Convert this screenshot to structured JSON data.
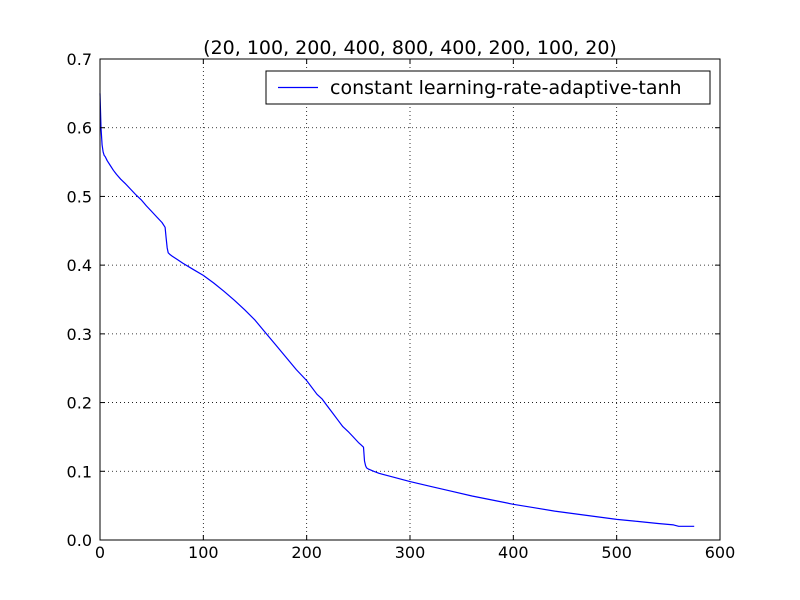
{
  "chart_data": {
    "type": "line",
    "title": "(20, 100, 200, 400, 800, 400, 200, 100, 20)",
    "xlabel": "",
    "ylabel": "",
    "xlim": [
      0,
      600
    ],
    "ylim": [
      0.0,
      0.7
    ],
    "x_ticks": [
      0,
      100,
      200,
      300,
      400,
      500,
      600
    ],
    "x_tick_labels": [
      "0",
      "100",
      "200",
      "300",
      "400",
      "500",
      "600"
    ],
    "y_ticks": [
      0.0,
      0.1,
      0.2,
      0.3,
      0.4,
      0.5,
      0.6,
      0.7
    ],
    "y_tick_labels": [
      "0.0",
      "0.1",
      "0.2",
      "0.3",
      "0.4",
      "0.5",
      "0.6",
      "0.7"
    ],
    "grid": true,
    "legend_position": "top-right",
    "colors": {
      "series": "#0000ff",
      "axes": "#000000",
      "grid": "#000000"
    },
    "series": [
      {
        "name": "constant learning-rate-adaptive-tanh",
        "x": [
          0,
          1,
          2,
          3,
          4,
          5,
          7,
          10,
          13,
          16,
          20,
          25,
          30,
          35,
          40,
          45,
          50,
          55,
          60,
          63,
          64,
          65,
          66,
          68,
          70,
          75,
          80,
          90,
          100,
          110,
          120,
          130,
          140,
          150,
          160,
          170,
          180,
          190,
          200,
          210,
          215,
          220,
          225,
          230,
          235,
          240,
          245,
          250,
          253,
          255,
          256,
          257,
          258,
          260,
          265,
          270,
          280,
          300,
          320,
          340,
          360,
          380,
          400,
          420,
          440,
          460,
          480,
          500,
          520,
          540,
          555,
          560,
          575
        ],
        "y": [
          0.65,
          0.6,
          0.575,
          0.565,
          0.56,
          0.558,
          0.552,
          0.545,
          0.538,
          0.532,
          0.525,
          0.518,
          0.51,
          0.502,
          0.495,
          0.486,
          0.478,
          0.47,
          0.462,
          0.455,
          0.44,
          0.425,
          0.418,
          0.415,
          0.413,
          0.408,
          0.403,
          0.394,
          0.385,
          0.374,
          0.362,
          0.349,
          0.335,
          0.32,
          0.302,
          0.284,
          0.266,
          0.248,
          0.232,
          0.212,
          0.205,
          0.195,
          0.185,
          0.175,
          0.165,
          0.158,
          0.15,
          0.142,
          0.138,
          0.135,
          0.115,
          0.108,
          0.105,
          0.103,
          0.1,
          0.097,
          0.093,
          0.085,
          0.078,
          0.071,
          0.064,
          0.058,
          0.052,
          0.047,
          0.042,
          0.038,
          0.034,
          0.03,
          0.027,
          0.024,
          0.022,
          0.02,
          0.02
        ]
      }
    ]
  }
}
